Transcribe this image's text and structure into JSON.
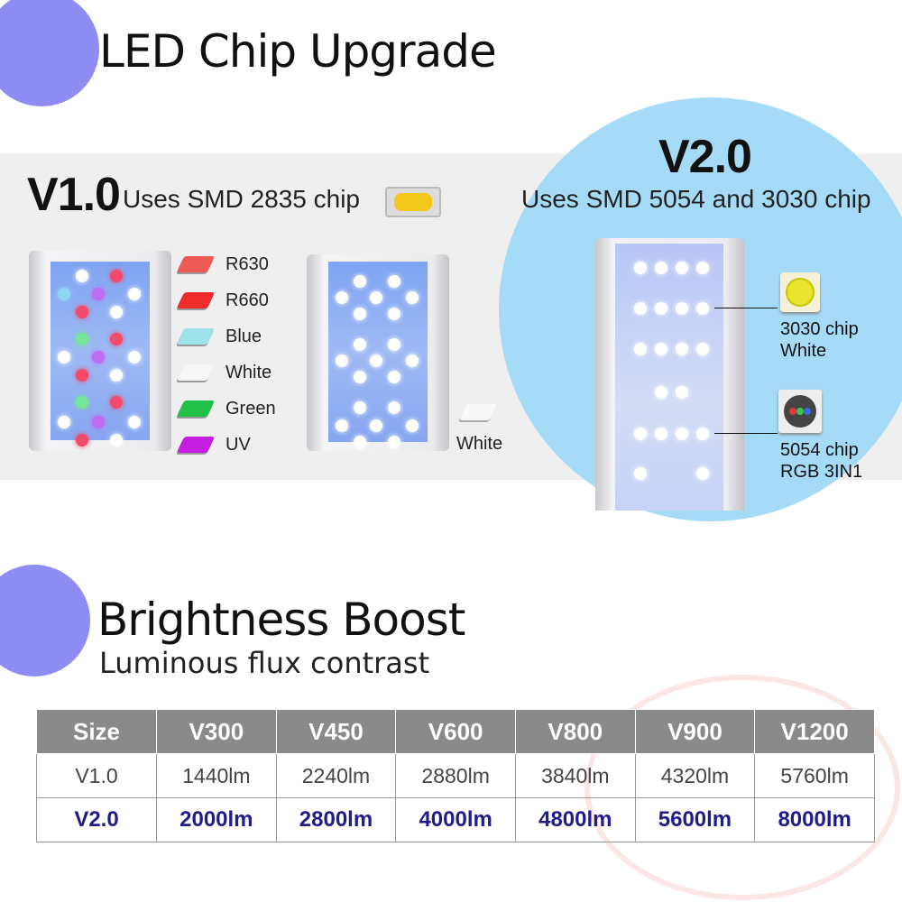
{
  "section1": {
    "title": "LED Chip Upgrade"
  },
  "v1": {
    "title": "V1.0",
    "subtitle": "Uses SMD 2835 chip",
    "legend": [
      {
        "label": "R630",
        "color": "#ee5a55"
      },
      {
        "label": "R660",
        "color": "#ee2b2b"
      },
      {
        "label": "Blue",
        "color": "#9fe3ea"
      },
      {
        "label": "White",
        "color": "#f6f6f6"
      },
      {
        "label": "Green",
        "color": "#22c24a"
      },
      {
        "label": "UV",
        "color": "#c51ee0"
      }
    ],
    "white_chip_label": "White"
  },
  "v2": {
    "title": "V2.0",
    "subtitle": "Uses SMD 5054 and 3030 chip",
    "chip_3030": {
      "line1": "3030 chip",
      "line2": "White"
    },
    "chip_5054": {
      "line1": "5054 chip",
      "line2": "RGB 3IN1"
    }
  },
  "section2": {
    "title": "Brightness Boost",
    "subtitle": "Luminous flux contrast"
  },
  "table": {
    "headers": [
      "Size",
      "V300",
      "V450",
      "V600",
      "V800",
      "V900",
      "V1200"
    ],
    "rows": [
      [
        "V1.0",
        "1440lm",
        "2240lm",
        "2880lm",
        "3840lm",
        "4320lm",
        "5760lm"
      ],
      [
        "V2.0",
        "2000lm",
        "2800lm",
        "4000lm",
        "4800lm",
        "5600lm",
        "8000lm"
      ]
    ]
  },
  "colors": {
    "accent": "#8f8cf4",
    "v2_bg": "#a6dbf8",
    "v2_row": "#201c8a",
    "header_bg": "#8a8a8a"
  }
}
